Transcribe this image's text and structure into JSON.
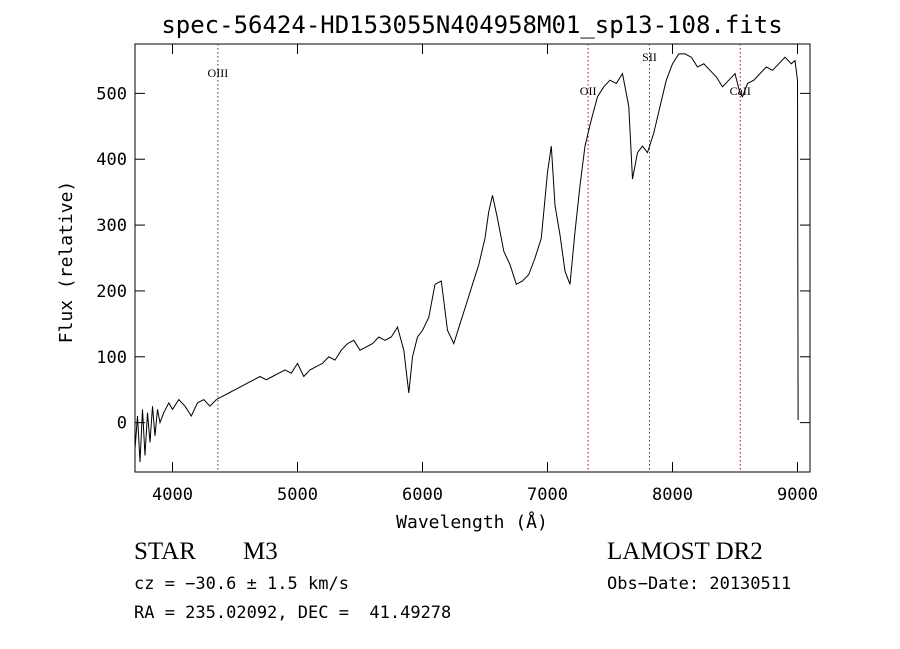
{
  "chart_data": {
    "type": "line",
    "title": "spec-56424-HD153055N404958M01_sp13-108.fits",
    "xlabel": "Wavelength (Å)",
    "ylabel": "Flux (relative)",
    "xlim": [
      3700,
      9100
    ],
    "ylim": [
      -75,
      575
    ],
    "x_ticks": [
      4000,
      5000,
      6000,
      7000,
      8000,
      9000
    ],
    "x_tick_labels": [
      "4000",
      "5000",
      "6000",
      "7000",
      "8000",
      "9000"
    ],
    "y_ticks": [
      0,
      100,
      200,
      300,
      400,
      500
    ],
    "y_tick_labels": [
      "0",
      "100",
      "200",
      "300",
      "400",
      "500"
    ],
    "grid": false,
    "line_color": "#000000",
    "line_marker_color": "#8b1a1a",
    "series": [
      {
        "x": [
          3700,
          3720,
          3740,
          3760,
          3780,
          3800,
          3820,
          3840,
          3860,
          3880,
          3900,
          3930,
          3970,
          4000,
          4050,
          4100,
          4150,
          4200,
          4250,
          4300,
          4350,
          4400,
          4450,
          4500,
          4550,
          4600,
          4650,
          4700,
          4750,
          4800,
          4850,
          4900,
          4950,
          5000,
          5050,
          5100,
          5150,
          5200,
          5250,
          5300,
          5350,
          5400,
          5450,
          5500,
          5550,
          5600,
          5650,
          5700,
          5750,
          5800,
          5850,
          5890,
          5920,
          5960,
          6000,
          6050,
          6100,
          6150,
          6200,
          6250,
          6300,
          6350,
          6400,
          6450,
          6500,
          6530,
          6560,
          6600,
          6650,
          6700,
          6750,
          6800,
          6850,
          6900,
          6950,
          7000,
          7030,
          7060,
          7100,
          7140,
          7180,
          7220,
          7260,
          7300,
          7350,
          7400,
          7450,
          7500,
          7550,
          7600,
          7650,
          7680,
          7720,
          7760,
          7800,
          7850,
          7900,
          7950,
          8000,
          8050,
          8100,
          8150,
          8200,
          8250,
          8300,
          8350,
          8400,
          8450,
          8500,
          8540,
          8560,
          8600,
          8650,
          8700,
          8750,
          8800,
          8850,
          8900,
          8950,
          8980,
          9000,
          9005,
          9010
        ],
        "y": [
          -40,
          10,
          -60,
          20,
          -50,
          15,
          -30,
          25,
          -20,
          20,
          0,
          15,
          30,
          20,
          35,
          25,
          10,
          30,
          35,
          25,
          35,
          40,
          45,
          50,
          55,
          60,
          65,
          70,
          65,
          70,
          75,
          80,
          75,
          90,
          70,
          80,
          85,
          90,
          100,
          95,
          110,
          120,
          125,
          110,
          115,
          120,
          130,
          125,
          130,
          145,
          110,
          45,
          100,
          130,
          140,
          160,
          210,
          215,
          140,
          120,
          150,
          180,
          210,
          240,
          280,
          320,
          345,
          310,
          260,
          240,
          210,
          215,
          225,
          250,
          280,
          380,
          420,
          330,
          285,
          230,
          210,
          290,
          360,
          420,
          460,
          495,
          510,
          520,
          515,
          530,
          480,
          370,
          410,
          420,
          410,
          440,
          480,
          520,
          545,
          560,
          560,
          555,
          540,
          545,
          535,
          525,
          510,
          520,
          530,
          500,
          495,
          515,
          520,
          530,
          540,
          535,
          545,
          555,
          545,
          550,
          520,
          5,
          5
        ]
      }
    ],
    "lines": [
      {
        "label": "OIII",
        "x": 4363
      },
      {
        "label": "OII",
        "x": 7325
      },
      {
        "label": "SII",
        "x": 7816
      },
      {
        "label": "CaII",
        "x": 8542
      }
    ]
  },
  "info": {
    "star_type": "STAR",
    "star_class": "M3",
    "survey": "LAMOST DR2",
    "cz": "cz = −30.6 ± 1.5 km/s",
    "obs_date": "Obs−Date: 20130511",
    "radec": "RA = 235.02092, DEC =  41.49278"
  }
}
